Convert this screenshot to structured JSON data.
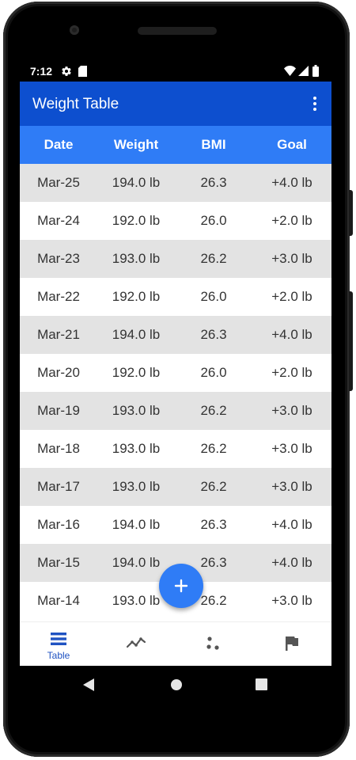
{
  "status_bar": {
    "time": "7:12"
  },
  "app_bar": {
    "title": "Weight Table"
  },
  "table": {
    "headers": [
      "Date",
      "Weight",
      "BMI",
      "Goal"
    ],
    "rows": [
      {
        "date": "Mar-25",
        "weight": "194.0 lb",
        "bmi": "26.3",
        "goal": "+4.0 lb"
      },
      {
        "date": "Mar-24",
        "weight": "192.0 lb",
        "bmi": "26.0",
        "goal": "+2.0 lb"
      },
      {
        "date": "Mar-23",
        "weight": "193.0 lb",
        "bmi": "26.2",
        "goal": "+3.0 lb"
      },
      {
        "date": "Mar-22",
        "weight": "192.0 lb",
        "bmi": "26.0",
        "goal": "+2.0 lb"
      },
      {
        "date": "Mar-21",
        "weight": "194.0 lb",
        "bmi": "26.3",
        "goal": "+4.0 lb"
      },
      {
        "date": "Mar-20",
        "weight": "192.0 lb",
        "bmi": "26.0",
        "goal": "+2.0 lb"
      },
      {
        "date": "Mar-19",
        "weight": "193.0 lb",
        "bmi": "26.2",
        "goal": "+3.0 lb"
      },
      {
        "date": "Mar-18",
        "weight": "193.0 lb",
        "bmi": "26.2",
        "goal": "+3.0 lb"
      },
      {
        "date": "Mar-17",
        "weight": "193.0 lb",
        "bmi": "26.2",
        "goal": "+3.0 lb"
      },
      {
        "date": "Mar-16",
        "weight": "194.0 lb",
        "bmi": "26.3",
        "goal": "+4.0 lb"
      },
      {
        "date": "Mar-15",
        "weight": "194.0 lb",
        "bmi": "26.3",
        "goal": "+4.0 lb"
      },
      {
        "date": "Mar-14",
        "weight": "193.0 lb",
        "bmi": "26.2",
        "goal": "+3.0 lb"
      }
    ]
  },
  "bottom_nav": {
    "items": [
      {
        "label": "Table",
        "icon": "table-icon",
        "selected": true
      },
      {
        "label": "",
        "icon": "line-chart-icon",
        "selected": false
      },
      {
        "label": "",
        "icon": "scatter-icon",
        "selected": false
      },
      {
        "label": "",
        "icon": "flag-icon",
        "selected": false
      }
    ]
  },
  "fab": {
    "icon": "add-icon"
  },
  "colors": {
    "app_bar": "#0d4fcf",
    "table_header": "#2f7cf6",
    "row_alt": "#e3e3e3",
    "fab": "#2f7cf6",
    "nav_selected": "#1f52c2",
    "nav_unselected": "#555555"
  }
}
